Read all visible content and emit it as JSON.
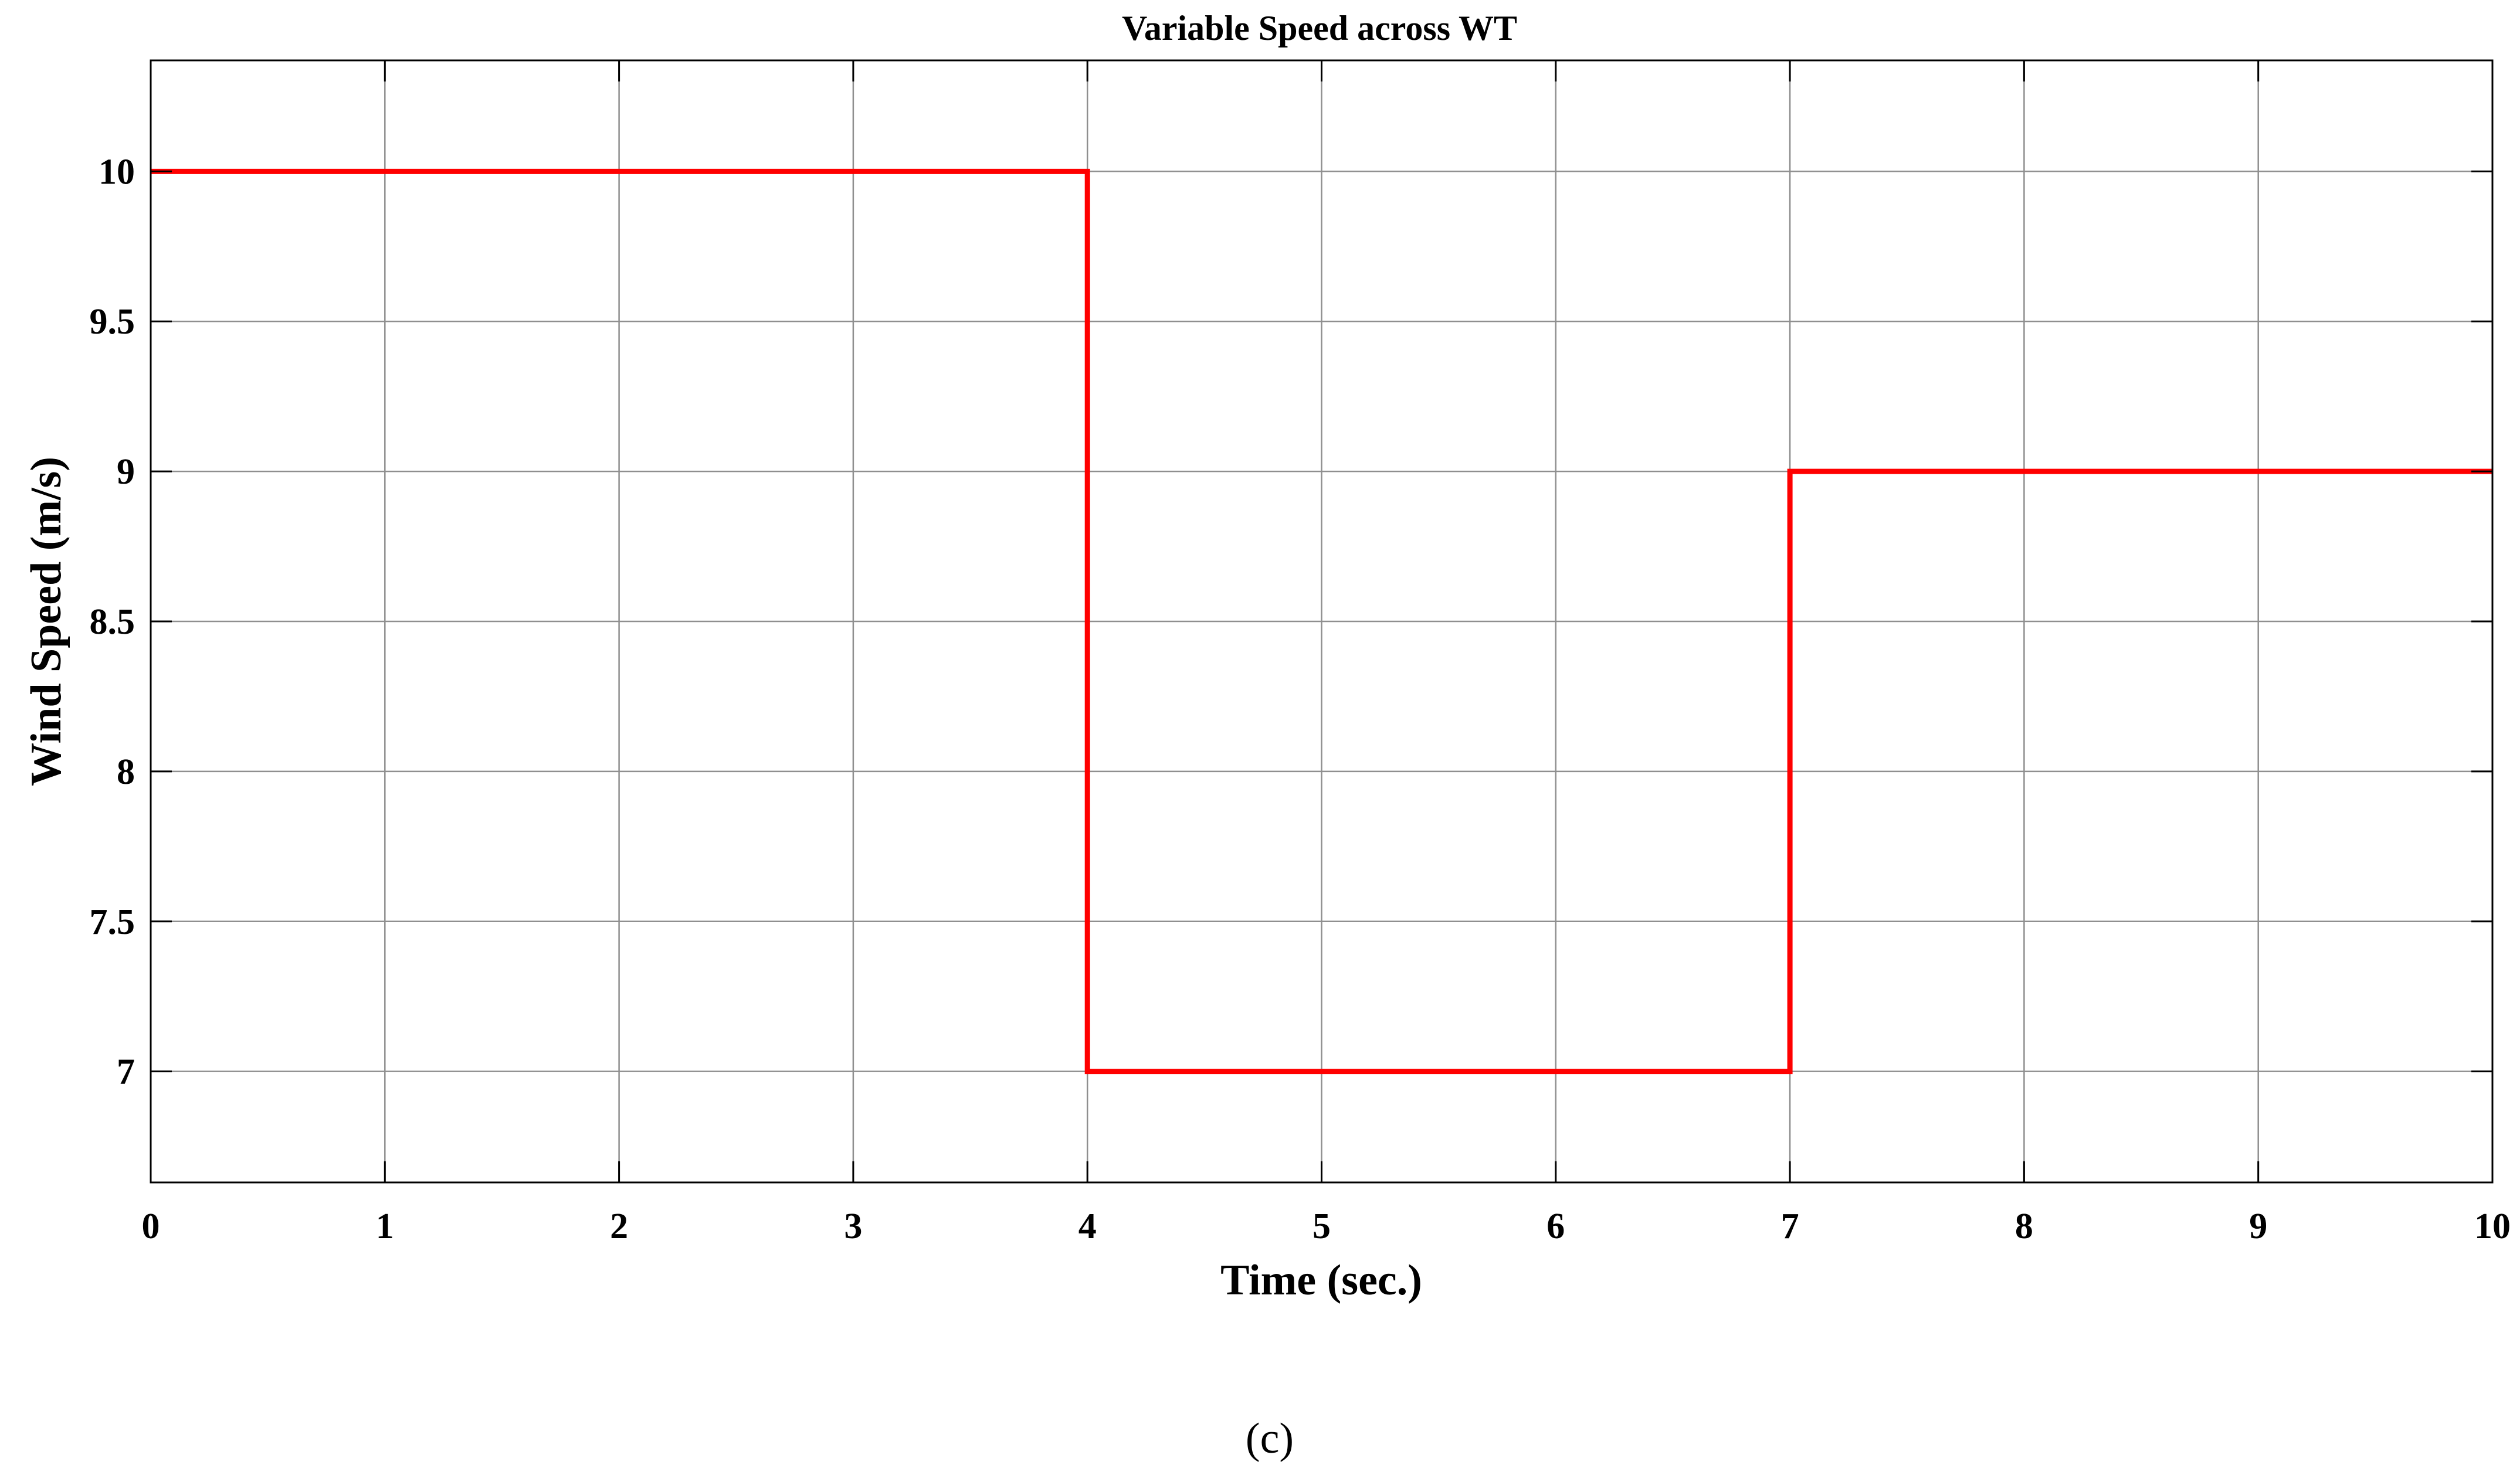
{
  "chart_data": {
    "type": "line",
    "title": "Variable Speed across WT",
    "xlabel": "Time (sec.)",
    "ylabel": "Wind Speed (m/s)",
    "xlim": [
      0,
      10
    ],
    "ylim": [
      6.63,
      10.37
    ],
    "x_ticks": [
      0,
      1,
      2,
      3,
      4,
      5,
      6,
      7,
      8,
      9,
      10
    ],
    "y_ticks": [
      7,
      7.5,
      8,
      8.5,
      9,
      9.5,
      10
    ],
    "x_tick_labels": [
      "0",
      "1",
      "2",
      "3",
      "4",
      "5",
      "6",
      "7",
      "8",
      "9",
      "10"
    ],
    "y_tick_labels": [
      "7",
      "7.5",
      "8",
      "8.5",
      "9",
      "9.5",
      "10"
    ],
    "grid": true,
    "series": [
      {
        "color": "#ff0000",
        "x": [
          0,
          4,
          4,
          7,
          7,
          10
        ],
        "y": [
          10,
          10,
          7,
          7,
          9,
          9
        ]
      }
    ]
  },
  "panel_label": "(c)"
}
